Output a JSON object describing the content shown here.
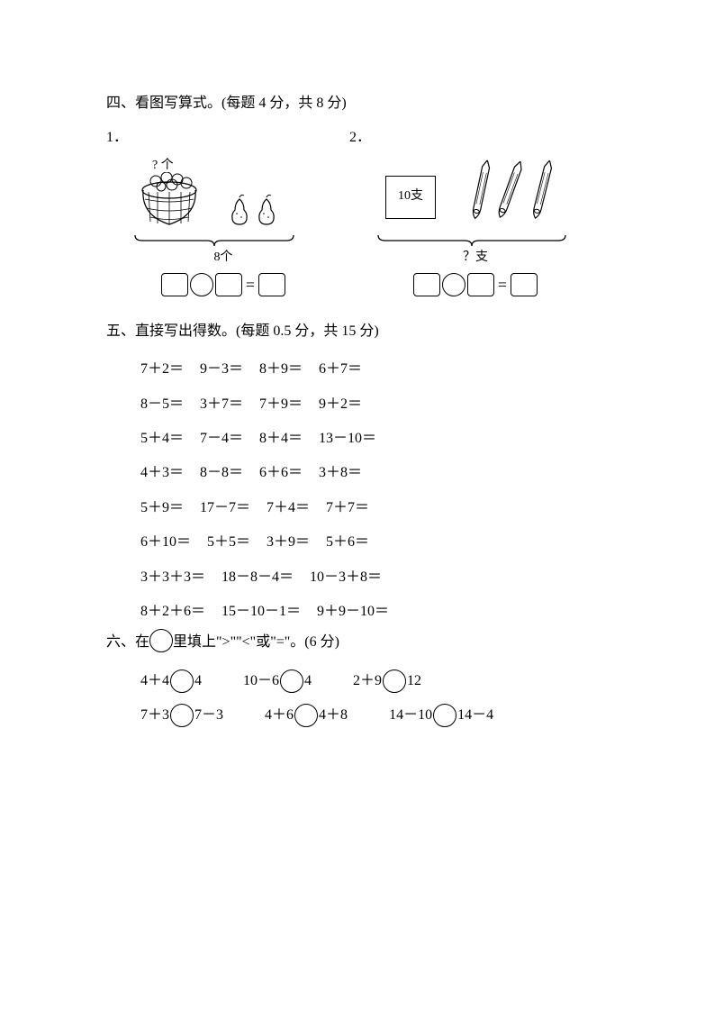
{
  "section4": {
    "title": "四、看图写算式。(每题 4 分，共 8 分)",
    "p1": {
      "num": "1．",
      "qlabel": "? 个",
      "bracelabel": "8个"
    },
    "p2": {
      "num": "2．",
      "boxlabel": "10支",
      "bracelabel": "？支"
    }
  },
  "section5": {
    "title": "五、直接写出得数。(每题 0.5 分，共 15 分)",
    "rows": [
      [
        "7＋2＝",
        "9－3＝",
        "8＋9＝",
        "6＋7＝"
      ],
      [
        "8－5＝",
        "3＋7＝",
        "7＋9＝",
        "9＋2＝"
      ],
      [
        "5＋4＝",
        "7－4＝",
        "8＋4＝",
        "13－10＝"
      ],
      [
        "4＋3＝",
        "8－8＝",
        "6＋6＝",
        "3＋8＝"
      ],
      [
        "5＋9＝",
        "17－7＝",
        "7＋4＝",
        "7＋7＝"
      ],
      [
        "6＋10＝",
        "5＋5＝",
        "3＋9＝",
        "5＋6＝"
      ],
      [
        "3＋3＋3＝",
        "18－8－4＝",
        "10－3＋8＝"
      ],
      [
        "8＋2＋6＝",
        "15－10－1＝",
        "9＋9－10＝"
      ]
    ]
  },
  "section6": {
    "title_pre": "六、在",
    "title_post": "里填上\">\"\"<\"或\"=\"。(6 分)",
    "rows": [
      [
        {
          "l": "4＋4",
          "r": "4"
        },
        {
          "l": "10－6",
          "r": "4"
        },
        {
          "l": "2＋9",
          "r": "12"
        }
      ],
      [
        {
          "l": "7＋3",
          "r": "7－3"
        },
        {
          "l": "4＋6",
          "r": "4＋8"
        },
        {
          "l": "14－10",
          "r": "14－4"
        }
      ]
    ]
  },
  "colors": {
    "text": "#000000",
    "background": "#ffffff",
    "border": "#000000"
  }
}
